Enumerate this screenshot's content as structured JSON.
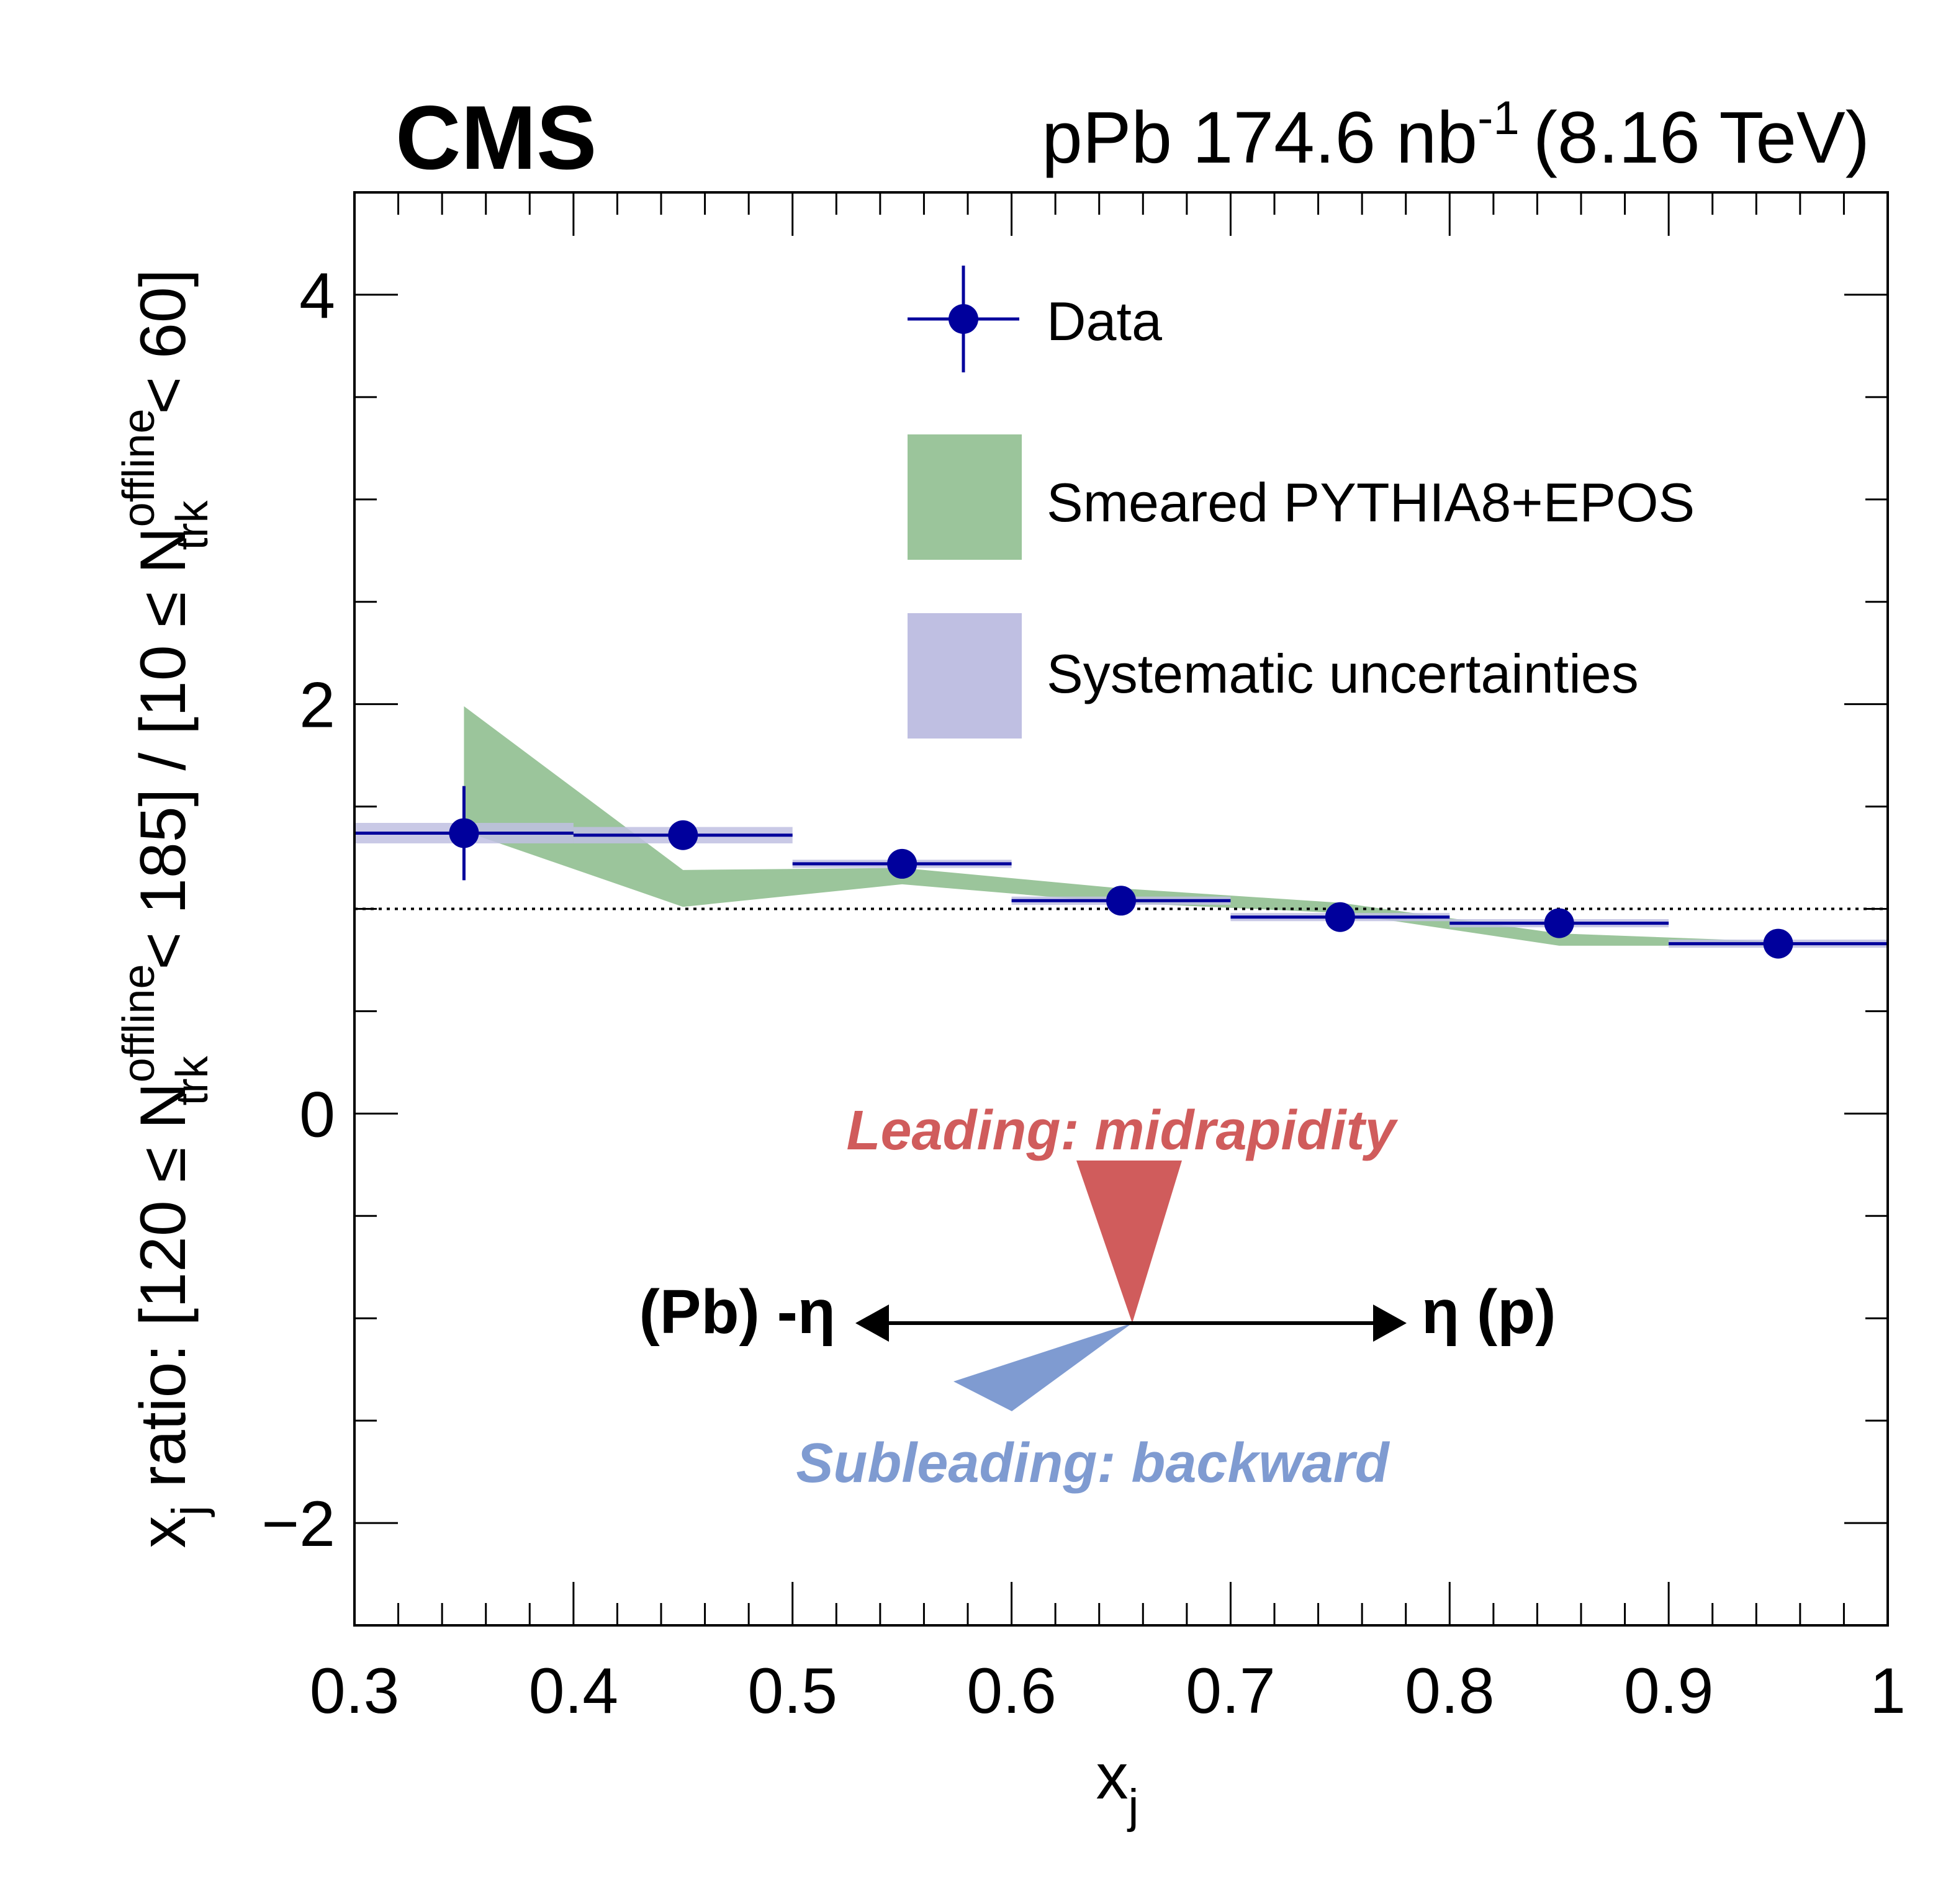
{
  "header": {
    "experiment": "CMS",
    "lumi_main": "pPb 174.6 nb",
    "lumi_exp": "-1",
    "energy": "(8.16 TeV)"
  },
  "axes": {
    "x_title": "x",
    "x_title_sub": "j",
    "y_title_a": "x",
    "y_title_a_sub": "j",
    "y_title_b": " ratio: [120 ≤ N",
    "y_title_b_sup": "offline",
    "y_title_b_sub": "trk",
    "y_title_c": " < 185] / [10 ≤ N",
    "y_title_c_sup": "offline",
    "y_title_c_sub": "trk",
    "y_title_d": " < 60]"
  },
  "legend": {
    "data": "Data",
    "model": "Smeared PYTHIA8+EPOS",
    "syst": "Systematic uncertainties"
  },
  "annotations": {
    "leading": "Leading: midrapidity",
    "subleading": "Subleading: backward",
    "left_dir": "(Pb) -η",
    "right_dir": "η (p)"
  },
  "colors": {
    "data": "#00009c",
    "model_band": "#9bc59b",
    "syst_band": "#bfbfe2",
    "leading": "#d05c5c",
    "subleading": "#7f9bd1"
  },
  "chart_data": {
    "type": "scatter",
    "xlim": [
      0.3,
      1.0
    ],
    "ylim": [
      -2.5,
      4.5
    ],
    "x_ticks": [
      0.3,
      0.4,
      0.5,
      0.6,
      0.7,
      0.8,
      0.9,
      1.0
    ],
    "x_tick_labels": [
      "0.3",
      "0.4",
      "0.5",
      "0.6",
      "0.7",
      "0.8",
      "0.9",
      "1"
    ],
    "y_ticks": [
      -2,
      0,
      2,
      4
    ],
    "y_tick_labels": [
      "−2",
      "0",
      "2",
      "4"
    ],
    "reference_line": 1.0,
    "data": {
      "name": "Data",
      "x": [
        0.35,
        0.45,
        0.55,
        0.65,
        0.75,
        0.85,
        0.95
      ],
      "x_err": [
        0.05,
        0.05,
        0.05,
        0.05,
        0.05,
        0.05,
        0.05
      ],
      "y": [
        1.37,
        1.36,
        1.22,
        1.04,
        0.96,
        0.93,
        0.83
      ],
      "y_err": [
        0.23,
        0.07,
        0.02,
        0.02,
        0.02,
        0.02,
        0.02
      ],
      "syst": [
        0.05,
        0.04,
        0.02,
        0.02,
        0.02,
        0.02,
        0.02
      ]
    },
    "model": {
      "name": "Smeared PYTHIA8+EPOS",
      "x": [
        0.35,
        0.45,
        0.55,
        0.65,
        0.75,
        0.85,
        0.95
      ],
      "upper": [
        1.99,
        1.19,
        1.2,
        1.1,
        1.03,
        0.88,
        0.84
      ],
      "lower": [
        1.38,
        1.01,
        1.12,
        1.03,
        0.98,
        0.82,
        0.82
      ]
    },
    "grid": false,
    "legend_position": "top-right"
  }
}
